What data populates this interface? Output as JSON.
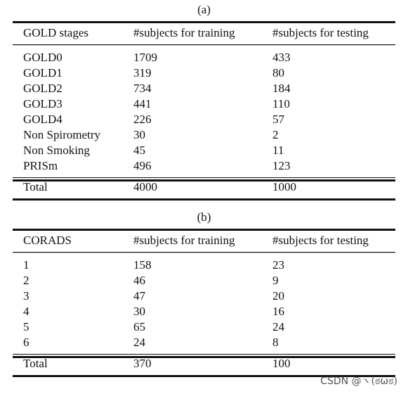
{
  "tables": [
    {
      "caption": "(a)",
      "header": [
        "GOLD stages",
        "#subjects for training",
        "#subjects for testing"
      ],
      "rows": [
        [
          "GOLD0",
          1709,
          433
        ],
        [
          "GOLD1",
          319,
          80
        ],
        [
          "GOLD2",
          734,
          184
        ],
        [
          "GOLD3",
          441,
          110
        ],
        [
          "GOLD4",
          226,
          57
        ],
        [
          "Non Spirometry",
          30,
          2
        ],
        [
          "Non Smoking",
          45,
          11
        ],
        [
          "PRISm",
          496,
          123
        ]
      ],
      "total": [
        "Total",
        4000,
        1000
      ]
    },
    {
      "caption": "(b)",
      "header": [
        "CORADS",
        "#subjects for training",
        "#subjects for testing"
      ],
      "rows": [
        [
          1,
          158,
          23
        ],
        [
          2,
          46,
          9
        ],
        [
          3,
          47,
          20
        ],
        [
          4,
          30,
          16
        ],
        [
          5,
          65,
          24
        ],
        [
          6,
          24,
          8
        ]
      ],
      "total": [
        "Total",
        370,
        100
      ]
    }
  ],
  "watermark": "CSDN @ヽ(ಠωಠ)"
}
